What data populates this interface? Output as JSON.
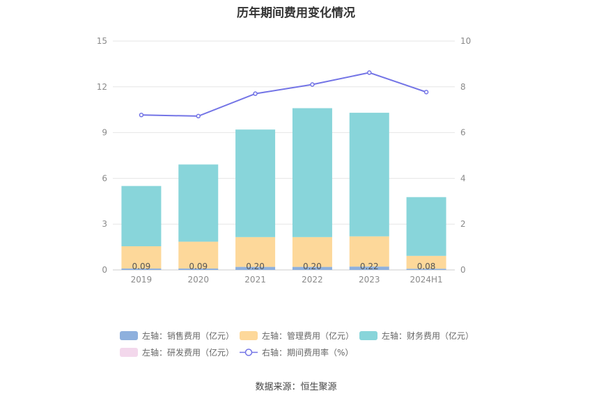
{
  "chart_data": {
    "type": "bar",
    "title": "历年期间费用变化情况",
    "categories": [
      "2019",
      "2020",
      "2021",
      "2022",
      "2023",
      "2024H1"
    ],
    "left_axis": {
      "min": 0,
      "max": 15,
      "ticks": [
        0,
        3,
        6,
        9,
        12,
        15
      ]
    },
    "right_axis": {
      "min": 0,
      "max": 10,
      "ticks": [
        0,
        2,
        4,
        6,
        8,
        10
      ]
    },
    "series": [
      {
        "name": "左轴：销售费用（亿元）",
        "axis": "left",
        "kind": "stacked-bar",
        "color": "#8eb0dd",
        "values": [
          0.09,
          0.09,
          0.2,
          0.2,
          0.22,
          0.08
        ],
        "labels": [
          "0.09",
          "0.09",
          "0.20",
          "0.20",
          "0.22",
          "0.08"
        ]
      },
      {
        "name": "左轴：管理费用（亿元）",
        "axis": "left",
        "kind": "stacked-bar",
        "color": "#fdd89a",
        "values": [
          1.46,
          1.76,
          1.95,
          1.95,
          1.98,
          0.84
        ]
      },
      {
        "name": "左轴：财务费用（亿元）",
        "axis": "left",
        "kind": "stacked-bar",
        "color": "#88d5da",
        "values": [
          3.95,
          5.06,
          7.05,
          8.45,
          8.1,
          3.85
        ]
      },
      {
        "name": "左轴：研发费用（亿元）",
        "axis": "left",
        "kind": "stacked-bar",
        "color": "#f3d8ec",
        "values": [
          0,
          0,
          0,
          0,
          0,
          0
        ]
      },
      {
        "name": "右轴：期间费用率（%）",
        "axis": "right",
        "kind": "line",
        "color": "#7374e6",
        "values": [
          6.77,
          6.72,
          7.7,
          8.1,
          8.62,
          7.77
        ]
      }
    ],
    "legend_position": "bottom"
  },
  "legend_line_color": "#7374e6",
  "source": "数据来源：恒生聚源"
}
